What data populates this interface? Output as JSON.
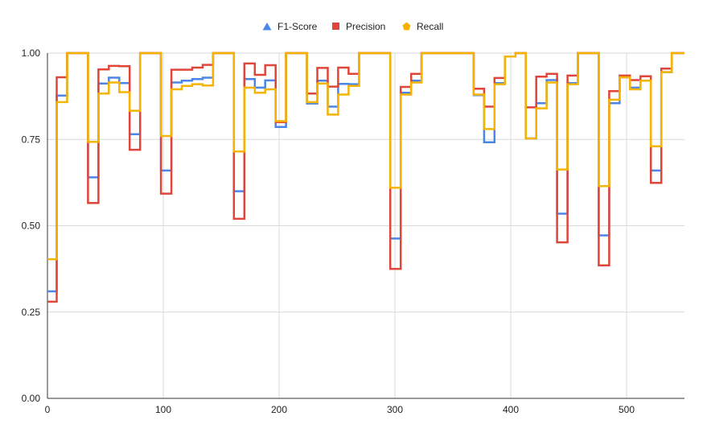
{
  "chart_data": {
    "type": "line",
    "step": true,
    "legend_position": "top-center",
    "grid": true,
    "xlim": [
      0,
      550
    ],
    "ylim": [
      0,
      1
    ],
    "x_ticks": [
      0,
      100,
      200,
      300,
      400,
      500
    ],
    "x_tick_labels": [
      "0",
      "100",
      "200",
      "300",
      "400",
      "500"
    ],
    "y_ticks": [
      0,
      0.25,
      0.5,
      0.75,
      1.0
    ],
    "y_tick_labels": [
      "0.00",
      "0.25",
      "0.50",
      "0.75",
      "1.00"
    ],
    "series": [
      {
        "name": "F1-Score",
        "color": "#4a86e8",
        "marker": "triangle",
        "values": [
          [
            0,
            0.31
          ],
          [
            8,
            0.877
          ],
          [
            17,
            1.0
          ],
          [
            35,
            0.64
          ],
          [
            44,
            0.912
          ],
          [
            53,
            0.929
          ],
          [
            62,
            0.913
          ],
          [
            71,
            0.765
          ],
          [
            80,
            1.0
          ],
          [
            98,
            0.66
          ],
          [
            107,
            0.915
          ],
          [
            116,
            0.92
          ],
          [
            125,
            0.925
          ],
          [
            134,
            0.929
          ],
          [
            143,
            1.0
          ],
          [
            161,
            0.6
          ],
          [
            170,
            0.925
          ],
          [
            179,
            0.9
          ],
          [
            188,
            0.921
          ],
          [
            197,
            0.786
          ],
          [
            206,
            1.0
          ],
          [
            224,
            0.854
          ],
          [
            233,
            0.92
          ],
          [
            242,
            0.845
          ],
          [
            251,
            0.911
          ],
          [
            260,
            0.91
          ],
          [
            269,
            1.0
          ],
          [
            296,
            0.463
          ],
          [
            305,
            0.885
          ],
          [
            314,
            0.92
          ],
          [
            323,
            1.0
          ],
          [
            368,
            0.878
          ],
          [
            377,
            0.742
          ],
          [
            386,
            0.913
          ],
          [
            395,
            0.99
          ],
          [
            404,
            1.0
          ],
          [
            413,
            0.753
          ],
          [
            422,
            0.855
          ],
          [
            431,
            0.922
          ],
          [
            440,
            0.535
          ],
          [
            449,
            0.913
          ],
          [
            458,
            1.0
          ],
          [
            476,
            0.472
          ],
          [
            485,
            0.855
          ],
          [
            494,
            0.93
          ],
          [
            503,
            0.9
          ],
          [
            512,
            0.92
          ],
          [
            521,
            0.66
          ],
          [
            530,
            0.945
          ],
          [
            539,
            1.0
          ],
          [
            550,
            1.0
          ]
        ]
      },
      {
        "name": "Precision",
        "color": "#e0453a",
        "marker": "square",
        "values": [
          [
            0,
            0.28
          ],
          [
            8,
            0.93
          ],
          [
            17,
            1.0
          ],
          [
            35,
            0.566
          ],
          [
            44,
            0.953
          ],
          [
            53,
            0.963
          ],
          [
            62,
            0.962
          ],
          [
            71,
            0.72
          ],
          [
            80,
            1.0
          ],
          [
            98,
            0.593
          ],
          [
            107,
            0.952
          ],
          [
            116,
            0.952
          ],
          [
            125,
            0.958
          ],
          [
            134,
            0.966
          ],
          [
            143,
            1.0
          ],
          [
            161,
            0.52
          ],
          [
            170,
            0.97
          ],
          [
            179,
            0.937
          ],
          [
            188,
            0.965
          ],
          [
            197,
            0.8
          ],
          [
            206,
            1.0
          ],
          [
            224,
            0.883
          ],
          [
            233,
            0.957
          ],
          [
            242,
            0.903
          ],
          [
            251,
            0.958
          ],
          [
            260,
            0.94
          ],
          [
            269,
            1.0
          ],
          [
            296,
            0.375
          ],
          [
            305,
            0.902
          ],
          [
            314,
            0.94
          ],
          [
            323,
            1.0
          ],
          [
            368,
            0.897
          ],
          [
            377,
            0.845
          ],
          [
            386,
            0.928
          ],
          [
            395,
            0.99
          ],
          [
            404,
            1.0
          ],
          [
            413,
            0.843
          ],
          [
            422,
            0.932
          ],
          [
            431,
            0.94
          ],
          [
            440,
            0.452
          ],
          [
            449,
            0.935
          ],
          [
            458,
            1.0
          ],
          [
            476,
            0.385
          ],
          [
            485,
            0.89
          ],
          [
            494,
            0.935
          ],
          [
            503,
            0.922
          ],
          [
            512,
            0.933
          ],
          [
            521,
            0.624
          ],
          [
            530,
            0.955
          ],
          [
            539,
            1.0
          ],
          [
            550,
            1.0
          ]
        ]
      },
      {
        "name": "Recall",
        "color": "#f4b400",
        "marker": "pentagon",
        "values": [
          [
            0,
            0.403
          ],
          [
            8,
            0.858
          ],
          [
            17,
            1.0
          ],
          [
            35,
            0.743
          ],
          [
            44,
            0.883
          ],
          [
            53,
            0.915
          ],
          [
            62,
            0.887
          ],
          [
            71,
            0.833
          ],
          [
            80,
            1.0
          ],
          [
            98,
            0.76
          ],
          [
            107,
            0.895
          ],
          [
            116,
            0.905
          ],
          [
            125,
            0.91
          ],
          [
            134,
            0.906
          ],
          [
            143,
            1.0
          ],
          [
            161,
            0.715
          ],
          [
            170,
            0.9
          ],
          [
            179,
            0.885
          ],
          [
            188,
            0.895
          ],
          [
            197,
            0.803
          ],
          [
            206,
            1.0
          ],
          [
            224,
            0.858
          ],
          [
            233,
            0.912
          ],
          [
            242,
            0.822
          ],
          [
            251,
            0.88
          ],
          [
            260,
            0.905
          ],
          [
            269,
            1.0
          ],
          [
            296,
            0.61
          ],
          [
            305,
            0.88
          ],
          [
            314,
            0.915
          ],
          [
            323,
            1.0
          ],
          [
            368,
            0.88
          ],
          [
            377,
            0.78
          ],
          [
            386,
            0.91
          ],
          [
            395,
            0.99
          ],
          [
            404,
            1.0
          ],
          [
            413,
            0.753
          ],
          [
            422,
            0.84
          ],
          [
            431,
            0.915
          ],
          [
            440,
            0.663
          ],
          [
            449,
            0.91
          ],
          [
            458,
            1.0
          ],
          [
            476,
            0.615
          ],
          [
            485,
            0.865
          ],
          [
            494,
            0.93
          ],
          [
            503,
            0.895
          ],
          [
            512,
            0.92
          ],
          [
            521,
            0.73
          ],
          [
            530,
            0.945
          ],
          [
            539,
            1.0
          ],
          [
            550,
            1.0
          ]
        ]
      }
    ]
  }
}
